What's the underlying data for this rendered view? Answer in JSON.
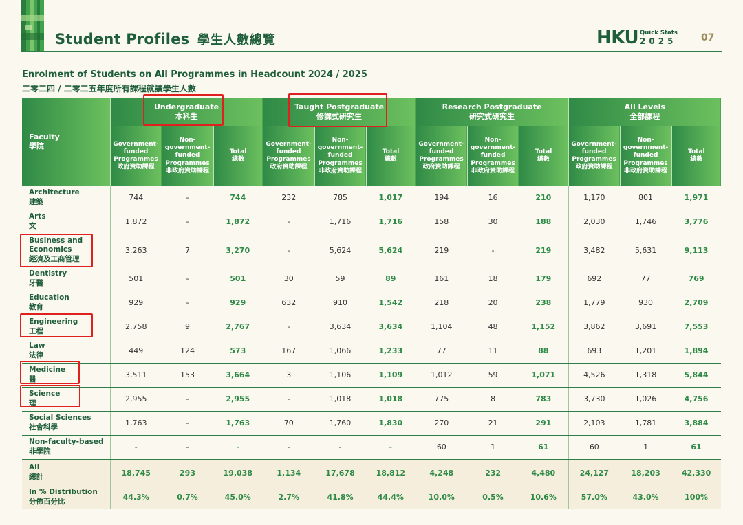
{
  "header": {
    "title_en": "Student Profiles",
    "title_zh": "學生人數總覽",
    "brand": "HKU",
    "quick_stats": "Quick Stats",
    "year": "2025",
    "page_number": "07"
  },
  "table_title_en": "Enrolment of Students on All Programmes in Headcount 2024 / 2025",
  "table_title_zh": "二零二四 / 二零二五年度所有課程就讀學生人數",
  "columns": {
    "faculty": {
      "en": "Faculty",
      "zh": "學院"
    },
    "groups": [
      {
        "en": "Undergraduate",
        "zh": "本科生"
      },
      {
        "en": "Taught Postgraduate",
        "zh": "修課式研究生"
      },
      {
        "en": "Research Postgraduate",
        "zh": "研究式研究生"
      },
      {
        "en": "All Levels",
        "zh": "全部課程"
      }
    ],
    "sub": [
      {
        "en": "Government-funded Programmes",
        "zh": "政府資助課程"
      },
      {
        "en": "Non-government-funded Programmes",
        "zh": "非政府資助課程"
      },
      {
        "en": "Total",
        "zh": "總數"
      }
    ]
  },
  "rows": [
    {
      "en": "Architecture",
      "zh": "建築",
      "v": [
        "744",
        "-",
        "744",
        "232",
        "785",
        "1,017",
        "194",
        "16",
        "210",
        "1,170",
        "801",
        "1,971"
      ]
    },
    {
      "en": "Arts",
      "zh": "文",
      "v": [
        "1,872",
        "-",
        "1,872",
        "-",
        "1,716",
        "1,716",
        "158",
        "30",
        "188",
        "2,030",
        "1,746",
        "3,776"
      ]
    },
    {
      "en": "Business and Economics",
      "zh": "經濟及工商管理",
      "v": [
        "3,263",
        "7",
        "3,270",
        "-",
        "5,624",
        "5,624",
        "219",
        "-",
        "219",
        "3,482",
        "5,631",
        "9,113"
      ]
    },
    {
      "en": "Dentistry",
      "zh": "牙醫",
      "v": [
        "501",
        "-",
        "501",
        "30",
        "59",
        "89",
        "161",
        "18",
        "179",
        "692",
        "77",
        "769"
      ]
    },
    {
      "en": "Education",
      "zh": "教育",
      "v": [
        "929",
        "-",
        "929",
        "632",
        "910",
        "1,542",
        "218",
        "20",
        "238",
        "1,779",
        "930",
        "2,709"
      ]
    },
    {
      "en": "Engineering",
      "zh": "工程",
      "v": [
        "2,758",
        "9",
        "2,767",
        "-",
        "3,634",
        "3,634",
        "1,104",
        "48",
        "1,152",
        "3,862",
        "3,691",
        "7,553"
      ]
    },
    {
      "en": "Law",
      "zh": "法律",
      "v": [
        "449",
        "124",
        "573",
        "167",
        "1,066",
        "1,233",
        "77",
        "11",
        "88",
        "693",
        "1,201",
        "1,894"
      ]
    },
    {
      "en": "Medicine",
      "zh": "醫",
      "v": [
        "3,511",
        "153",
        "3,664",
        "3",
        "1,106",
        "1,109",
        "1,012",
        "59",
        "1,071",
        "4,526",
        "1,318",
        "5,844"
      ]
    },
    {
      "en": "Science",
      "zh": "理",
      "v": [
        "2,955",
        "-",
        "2,955",
        "-",
        "1,018",
        "1,018",
        "775",
        "8",
        "783",
        "3,730",
        "1,026",
        "4,756"
      ]
    },
    {
      "en": "Social Sciences",
      "zh": "社會科學",
      "v": [
        "1,763",
        "-",
        "1,763",
        "70",
        "1,760",
        "1,830",
        "270",
        "21",
        "291",
        "2,103",
        "1,781",
        "3,884"
      ]
    },
    {
      "en": "Non-faculty-based",
      "zh": "非學院",
      "v": [
        "-",
        "-",
        "-",
        "-",
        "-",
        "-",
        "60",
        "1",
        "61",
        "60",
        "1",
        "61"
      ]
    }
  ],
  "all_row": {
    "en": "All",
    "zh": "總計",
    "v": [
      "18,745",
      "293",
      "19,038",
      "1,134",
      "17,678",
      "18,812",
      "4,248",
      "232",
      "4,480",
      "24,127",
      "18,203",
      "42,330"
    ]
  },
  "dist_row": {
    "en": "In % Distribution",
    "zh": "分佈百分比",
    "v": [
      "44.3%",
      "0.7%",
      "45.0%",
      "2.7%",
      "41.8%",
      "44.4%",
      "10.0%",
      "0.5%",
      "10.6%",
      "57.0%",
      "43.0%",
      "100%"
    ]
  },
  "colors": {
    "header_green": "#2f8a46",
    "title_green": "#1f5e3a",
    "total_green": "#2e8b46",
    "highlight_red": "#e0201e",
    "summary_bg": "#f5eedc"
  }
}
